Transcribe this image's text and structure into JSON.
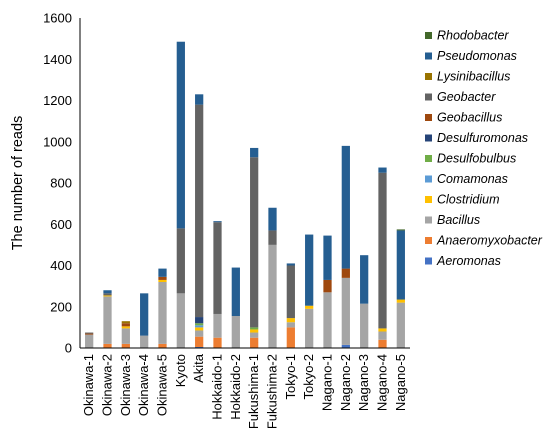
{
  "chart_data": {
    "type": "bar",
    "stacked": true,
    "ylabel": "The number of reads",
    "xlabel": "",
    "ylim": [
      0,
      1600
    ],
    "yticks": [
      0,
      200,
      400,
      600,
      800,
      1000,
      1200,
      1400,
      1600
    ],
    "grid": false,
    "legend_position": "right",
    "categories": [
      "Okinawa-1",
      "Okinawa-2",
      "Okinawa-3",
      "Okinawa-4",
      "Okinawa-5",
      "Kyoto",
      "Akita",
      "Hokkaido-1",
      "Hokkaido-2",
      "Fukushima-1",
      "Fukushima-2",
      "Tokyo-1",
      "Tokyo-2",
      "Nagano-1",
      "Nagano-2",
      "Nagano-3",
      "Nagano-4",
      "Nagano-5"
    ],
    "series": [
      {
        "name": "Aeromonas",
        "color": "#4472C4",
        "values": [
          0,
          0,
          0,
          0,
          0,
          0,
          5,
          0,
          0,
          0,
          0,
          0,
          0,
          0,
          15,
          0,
          0,
          0
        ]
      },
      {
        "name": "Anaeromyxobacter",
        "color": "#ED7D31",
        "values": [
          0,
          20,
          20,
          0,
          20,
          0,
          50,
          50,
          0,
          50,
          0,
          100,
          0,
          0,
          0,
          0,
          40,
          0
        ]
      },
      {
        "name": "Bacillus",
        "color": "#A5A5A5",
        "values": [
          65,
          230,
          75,
          60,
          300,
          265,
          30,
          115,
          155,
          25,
          500,
          25,
          190,
          270,
          325,
          215,
          40,
          220
        ]
      },
      {
        "name": "Clostridium",
        "color": "#FFC000",
        "values": [
          0,
          5,
          10,
          0,
          10,
          0,
          15,
          0,
          0,
          15,
          0,
          20,
          15,
          0,
          0,
          0,
          15,
          15
        ]
      },
      {
        "name": "Comamonas",
        "color": "#5B9BD5",
        "values": [
          0,
          0,
          0,
          0,
          0,
          0,
          10,
          0,
          0,
          0,
          0,
          0,
          0,
          0,
          0,
          0,
          0,
          0
        ]
      },
      {
        "name": "Desulfobulbus",
        "color": "#70AD47",
        "values": [
          0,
          0,
          0,
          0,
          0,
          0,
          10,
          0,
          0,
          10,
          0,
          0,
          0,
          0,
          0,
          0,
          0,
          0
        ]
      },
      {
        "name": "Desulfuromonas",
        "color": "#264478",
        "values": [
          0,
          0,
          0,
          0,
          0,
          0,
          30,
          0,
          0,
          0,
          0,
          0,
          0,
          0,
          0,
          0,
          0,
          0
        ]
      },
      {
        "name": "Geobacillus",
        "color": "#9E480E",
        "values": [
          5,
          0,
          15,
          0,
          15,
          0,
          0,
          0,
          0,
          0,
          0,
          0,
          0,
          60,
          45,
          0,
          0,
          0
        ]
      },
      {
        "name": "Geobacter",
        "color": "#636363",
        "values": [
          5,
          10,
          0,
          0,
          0,
          315,
          1030,
          445,
          0,
          825,
          70,
          255,
          0,
          0,
          0,
          0,
          755,
          0
        ]
      },
      {
        "name": "Lysinibacillus",
        "color": "#997300",
        "values": [
          0,
          0,
          10,
          0,
          0,
          0,
          0,
          0,
          0,
          0,
          0,
          0,
          0,
          0,
          0,
          0,
          0,
          0
        ]
      },
      {
        "name": "Pseudomonas",
        "color": "#255E91",
        "values": [
          0,
          15,
          0,
          205,
          40,
          905,
          50,
          5,
          235,
          45,
          110,
          10,
          345,
          215,
          595,
          235,
          25,
          335
        ]
      },
      {
        "name": "Rhodobacter",
        "color": "#43682B",
        "values": [
          0,
          0,
          0,
          0,
          0,
          0,
          0,
          0,
          0,
          0,
          0,
          0,
          0,
          0,
          0,
          0,
          0,
          5
        ]
      }
    ]
  }
}
